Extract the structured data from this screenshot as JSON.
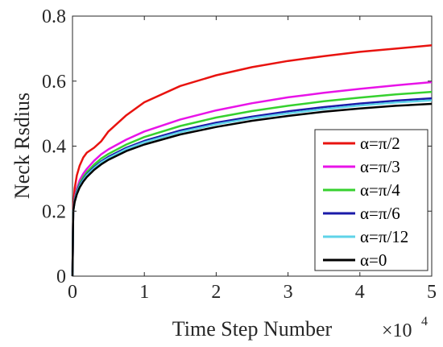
{
  "chart_data": {
    "type": "line",
    "xlabel": "Time Step Number",
    "ylabel": "Neck Rsdius",
    "x_exponent_label": {
      "base": "×10",
      "exp": "4"
    },
    "xlim": [
      0,
      5
    ],
    "ylim": [
      0,
      0.8
    ],
    "xticks": [
      0,
      1,
      2,
      3,
      4,
      5
    ],
    "xtick_labels": [
      "0",
      "1",
      "2",
      "3",
      "4",
      "5"
    ],
    "yticks": [
      0,
      0.2,
      0.4,
      0.6,
      0.8
    ],
    "ytick_labels": [
      "0",
      "0.2",
      "0.4",
      "0.6",
      "0.8"
    ],
    "grid": false,
    "legend_position": "bottom-right",
    "x": [
      0,
      0.01,
      0.03,
      0.06,
      0.1,
      0.15,
      0.2,
      0.3,
      0.4,
      0.5,
      0.75,
      1,
      1.5,
      2,
      2.5,
      3,
      3.5,
      4,
      4.5,
      5
    ],
    "series": [
      {
        "name": "α=π/2",
        "color": "#e8130f",
        "values": [
          0,
          0.21,
          0.27,
          0.31,
          0.34,
          0.365,
          0.38,
          0.395,
          0.415,
          0.445,
          0.495,
          0.535,
          0.585,
          0.618,
          0.643,
          0.662,
          0.677,
          0.69,
          0.7,
          0.71
        ]
      },
      {
        "name": "α=π/3",
        "color": "#e813e8",
        "values": [
          0,
          0.2,
          0.24,
          0.27,
          0.295,
          0.315,
          0.33,
          0.355,
          0.375,
          0.39,
          0.42,
          0.445,
          0.482,
          0.51,
          0.532,
          0.55,
          0.564,
          0.576,
          0.587,
          0.597
        ]
      },
      {
        "name": "α=π/4",
        "color": "#36d12f",
        "values": [
          0,
          0.2,
          0.235,
          0.262,
          0.285,
          0.305,
          0.32,
          0.343,
          0.362,
          0.376,
          0.405,
          0.428,
          0.462,
          0.488,
          0.508,
          0.524,
          0.538,
          0.549,
          0.559,
          0.567
        ]
      },
      {
        "name": "α=π/6",
        "color": "#1a1aa8",
        "values": [
          0,
          0.2,
          0.232,
          0.258,
          0.28,
          0.298,
          0.313,
          0.335,
          0.353,
          0.367,
          0.395,
          0.416,
          0.448,
          0.472,
          0.491,
          0.507,
          0.52,
          0.531,
          0.54,
          0.547
        ]
      },
      {
        "name": "α=π/12",
        "color": "#5fd3e8",
        "values": [
          0,
          0.2,
          0.23,
          0.255,
          0.277,
          0.295,
          0.31,
          0.332,
          0.35,
          0.363,
          0.391,
          0.412,
          0.443,
          0.467,
          0.486,
          0.501,
          0.514,
          0.525,
          0.534,
          0.541
        ]
      },
      {
        "name": "α=0",
        "color": "#000000",
        "values": [
          0,
          0.2,
          0.228,
          0.252,
          0.273,
          0.291,
          0.305,
          0.327,
          0.344,
          0.358,
          0.385,
          0.405,
          0.436,
          0.459,
          0.478,
          0.493,
          0.506,
          0.516,
          0.524,
          0.53
        ]
      }
    ]
  }
}
